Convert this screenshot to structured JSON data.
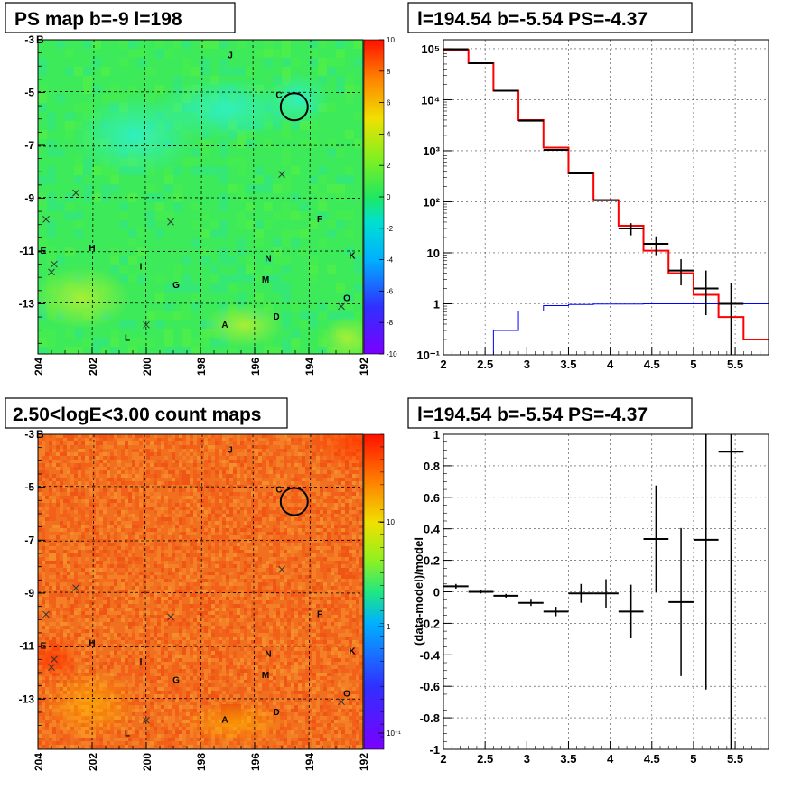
{
  "panels": {
    "ps_map": {
      "title": "PS map b=-9 l=198",
      "colorbar_ticks": [
        "10",
        "8",
        "6",
        "4",
        "2",
        "0",
        "-2",
        "-4",
        "-6",
        "-8",
        "-10"
      ]
    },
    "count_map": {
      "title": "2.50<logE<3.00 count maps",
      "colorbar_ticks": [
        "10",
        "1",
        "10⁻¹"
      ]
    },
    "spectrum": {
      "title": "l=194.54 b=-5.54 PS=-4.37"
    },
    "residual": {
      "title": "l=194.54 b=-5.54 PS=-4.37",
      "ylabel": "(data-model)/model"
    }
  },
  "map_axes": {
    "x_ticks": [
      "204",
      "202",
      "200",
      "198",
      "196",
      "194",
      "192"
    ],
    "y_ticks": [
      "-3",
      "-5",
      "-7",
      "-9",
      "-11",
      "-13"
    ],
    "y_extra": "B"
  },
  "sources": [
    {
      "name": "J",
      "l": 196.9,
      "b": -3.7
    },
    {
      "name": "C",
      "l": 195.1,
      "b": -5.2
    },
    {
      "name": "F",
      "l": 193.6,
      "b": -9.9
    },
    {
      "name": "E",
      "l": 203.8,
      "b": -11.1
    },
    {
      "name": "H",
      "l": 202.0,
      "b": -11.0
    },
    {
      "name": "N",
      "l": 195.5,
      "b": -11.4
    },
    {
      "name": "K",
      "l": 192.4,
      "b": -11.3
    },
    {
      "name": "I",
      "l": 200.2,
      "b": -11.7
    },
    {
      "name": "M",
      "l": 195.6,
      "b": -12.2
    },
    {
      "name": "G",
      "l": 198.9,
      "b": -12.4
    },
    {
      "name": "O",
      "l": 192.6,
      "b": -12.9
    },
    {
      "name": "D",
      "l": 195.2,
      "b": -13.6
    },
    {
      "name": "A",
      "l": 197.1,
      "b": -13.9
    },
    {
      "name": "L",
      "l": 200.7,
      "b": -14.4
    }
  ],
  "crosses": [
    {
      "l": 195.0,
      "b": -8.1
    },
    {
      "l": 202.6,
      "b": -8.8
    },
    {
      "l": 203.7,
      "b": -9.8
    },
    {
      "l": 199.1,
      "b": -9.9
    },
    {
      "l": 203.4,
      "b": -11.5
    },
    {
      "l": 203.5,
      "b": -11.8
    },
    {
      "l": 192.8,
      "b": -13.1
    },
    {
      "l": 200.0,
      "b": -13.8
    }
  ],
  "target": {
    "l": 194.54,
    "b": -5.54
  },
  "chart_data": [
    {
      "type": "heatmap",
      "panel": "ps_map",
      "title": "PS map b=-9 l=198",
      "xlabel": "",
      "ylabel": "",
      "xlim": [
        204,
        192
      ],
      "ylim": [
        -14.9,
        -3
      ],
      "zlim": [
        -10,
        10
      ]
    },
    {
      "type": "heatmap",
      "panel": "count_map",
      "title": "2.50<logE<3.00 count maps",
      "xlabel": "",
      "ylabel": "",
      "xlim": [
        204,
        192
      ],
      "ylim": [
        -14.9,
        -3
      ],
      "zscale": "log"
    },
    {
      "type": "line",
      "panel": "spectrum",
      "title": "l=194.54 b=-5.54 PS=-4.37",
      "xlabel": "",
      "ylabel": "",
      "xlim": [
        2.0,
        5.9
      ],
      "ylim": [
        0.1,
        150000
      ],
      "yscale": "log",
      "x_ticks": [
        "2",
        "2.5",
        "3",
        "3.5",
        "4",
        "4.5",
        "5",
        "5.5"
      ],
      "y_ticks": [
        "10⁻¹",
        "1",
        "10",
        "10²",
        "10³",
        "10⁴",
        "10⁵"
      ],
      "series": [
        {
          "color": "#ff0000",
          "edges": [
            2.0,
            2.3,
            2.6,
            2.9,
            3.2,
            3.5,
            3.8,
            4.1,
            4.4,
            4.7,
            5.0,
            5.3,
            5.6,
            5.9
          ],
          "values": [
            95000,
            52000,
            15000,
            4000,
            1150,
            360,
            108,
            34,
            11,
            4.0,
            1.5,
            0.55,
            0.2
          ]
        },
        {
          "color": "#0000ff",
          "edges": [
            2.6,
            2.9,
            3.2,
            3.5,
            3.8,
            4.1,
            4.4,
            4.7,
            5.0,
            5.3,
            5.6,
            5.9
          ],
          "values": [
            0.3,
            0.72,
            0.92,
            0.97,
            0.99,
            0.99,
            1.0,
            1.0,
            1.0,
            1.0,
            1.0
          ]
        },
        {
          "color": "#000000",
          "kind": "points",
          "x": [
            2.15,
            2.45,
            2.75,
            3.05,
            3.35,
            3.65,
            3.95,
            4.25,
            4.55,
            4.85,
            5.15,
            5.45
          ],
          "y": [
            98000,
            52000,
            15000,
            3900,
            1040,
            360,
            108,
            30,
            15,
            4.5,
            2.0,
            1.0
          ],
          "yerr_lo": [
            0,
            0,
            0,
            0,
            0,
            0,
            0,
            8,
            6,
            2.2,
            1.4,
            0.99
          ],
          "yerr_hi": [
            0,
            0,
            0,
            0,
            0,
            0,
            0,
            8,
            6,
            3.0,
            2.5,
            1.6
          ]
        }
      ]
    },
    {
      "type": "scatter",
      "panel": "residual",
      "title": "l=194.54 b=-5.54 PS=-4.37",
      "xlabel": "",
      "ylabel": "(data-model)/model",
      "xlim": [
        2.0,
        5.9
      ],
      "ylim": [
        -1,
        1
      ],
      "x_ticks": [
        "2",
        "2.5",
        "3",
        "3.5",
        "4",
        "4.5",
        "5",
        "5.5"
      ],
      "y_ticks": [
        "1",
        "0.8",
        "0.6",
        "0.4",
        "0.2",
        "0",
        "-0.2",
        "-0.4",
        "-0.6",
        "-0.8",
        "-1"
      ],
      "x": [
        2.15,
        2.45,
        2.75,
        3.05,
        3.35,
        3.65,
        3.95,
        4.25,
        4.55,
        4.85,
        5.15,
        5.45
      ],
      "y": [
        0.035,
        0.0,
        -0.025,
        -0.07,
        -0.125,
        -0.01,
        -0.01,
        -0.125,
        0.335,
        -0.065,
        0.33,
        0.89
      ],
      "yerr": [
        0.015,
        0.01,
        0.012,
        0.02,
        0.03,
        0.06,
        0.09,
        0.17,
        0.34,
        0.47,
        0.95,
        1.9
      ]
    }
  ]
}
